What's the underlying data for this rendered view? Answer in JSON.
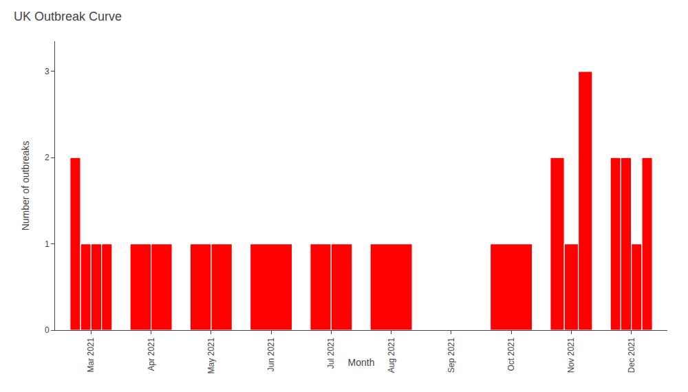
{
  "chart_data": {
    "type": "bar",
    "title": "UK Outbreak Curve",
    "xlabel": "Month",
    "ylabel": "Number of outbreaks",
    "categories": [
      "Mar 2021",
      "Apr 2021",
      "May 2021",
      "Jun 2021",
      "Jul 2021",
      "Aug 2021",
      "Sep 2021",
      "Oct 2021",
      "Nov 2021",
      "Dec 2021"
    ],
    "values": [
      [
        2,
        1,
        1,
        1
      ],
      [
        1,
        1
      ],
      [
        1,
        1
      ],
      [
        1
      ],
      [
        1,
        1
      ],
      [
        1
      ],
      [],
      [
        1
      ],
      [
        2,
        1,
        3
      ],
      [
        2,
        2,
        1,
        2
      ]
    ],
    "color": "#FF0000",
    "ylim": [
      0,
      3.35
    ],
    "yticks": [
      0,
      1,
      2,
      3
    ],
    "grid": false
  }
}
